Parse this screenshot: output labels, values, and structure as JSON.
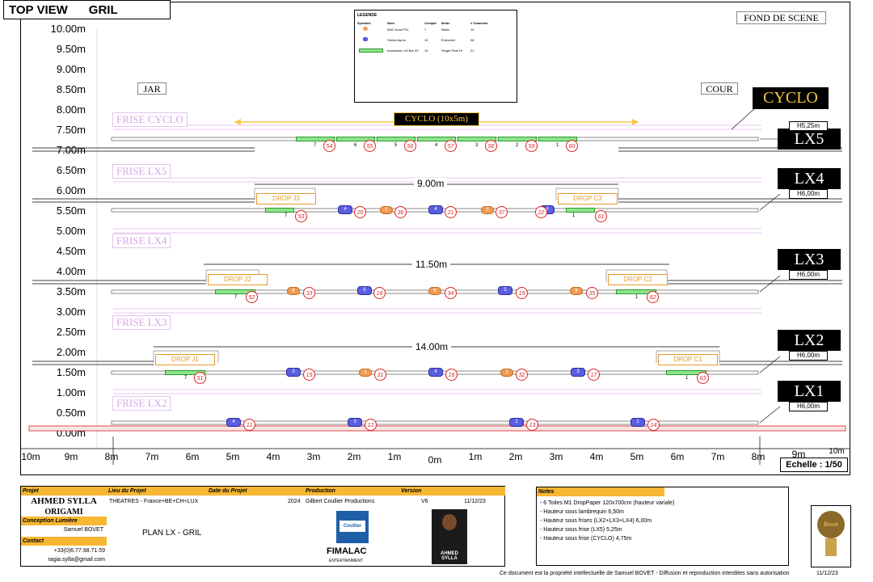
{
  "header": {
    "view": "TOP VIEW",
    "title": "GRIL"
  },
  "stage": {
    "backdrop": "FOND DE SCENE",
    "left": "JAR",
    "right": "COUR",
    "cyclo_label": "CYCLO",
    "cyclo_size": "CYCLO (10x5m)"
  },
  "y_axis": [
    "10.00m",
    "9.50m",
    "9.00m",
    "8.50m",
    "8.00m",
    "7.50m",
    "7.00m",
    "6.50m",
    "6.00m",
    "5.50m",
    "5.00m",
    "4.50m",
    "4.00m",
    "3.50m",
    "3.00m",
    "2.50m",
    "2.00m",
    "1.50m",
    "1.00m",
    "0.50m",
    "0.00m"
  ],
  "x_axis": [
    "10m",
    "9m",
    "8m",
    "7m",
    "6m",
    "5m",
    "4m",
    "3m",
    "2m",
    "1m",
    "0m",
    "1m",
    "2m",
    "3m",
    "4m",
    "5m",
    "6m",
    "7m",
    "8m",
    "9m",
    "10m"
  ],
  "scale": "Echelle : 1/50",
  "frises": [
    "FRISE CYCLO",
    "FRISE LX5",
    "FRISE LX4",
    "FRISE LX3",
    "FRISE LX2"
  ],
  "bars": [
    {
      "name": "LX5",
      "height": "H5,25m"
    },
    {
      "name": "LX4",
      "height": "H6,00m"
    },
    {
      "name": "LX3",
      "height": "H6,00m"
    },
    {
      "name": "LX2",
      "height": "H6,00m"
    },
    {
      "name": "LX1",
      "height": "H6,00m"
    }
  ],
  "widths": [
    "9.00m",
    "11.50m",
    "14.00m"
  ],
  "drops": [
    "DROP J3",
    "DROP C3",
    "DROP J2",
    "DROP C2",
    "DROP J1",
    "DROP C1"
  ],
  "legend": {
    "title": "LEGENDE",
    "headers": [
      "Symbole",
      "Nom",
      "Compte",
      "Mode",
      "# Channels"
    ],
    "rows": [
      [
        "MAC Aura PXL",
        "7",
        "Basic",
        "14"
      ],
      [
        "Strobe Ayron",
        "10",
        "Extended",
        "06"
      ],
      [
        "Impression X4 Bar 20",
        "10",
        "Single-Pixel HI",
        "21"
      ]
    ]
  },
  "lx5": {
    "counts": [
      "7",
      "6",
      "5",
      "4",
      "3",
      "2",
      "1"
    ],
    "ids": [
      "54",
      "55",
      "56",
      "57",
      "58",
      "59",
      "60"
    ]
  },
  "lx4": {
    "counts": [
      "7",
      "4",
      "5",
      "4",
      "5",
      "4",
      "1"
    ],
    "ids": [
      "53",
      "20",
      "36",
      "21",
      "37",
      "22",
      "61"
    ]
  },
  "lx3": {
    "counts": [
      "7",
      "6",
      "5",
      "6",
      "5",
      "6",
      "1"
    ],
    "ids": [
      "52",
      "33",
      "18",
      "34",
      "19",
      "35",
      "62"
    ]
  },
  "lx2": {
    "counts": [
      "7",
      "3",
      "3",
      "4",
      "3",
      "3",
      "1"
    ],
    "ids": [
      "51",
      "15",
      "31",
      "16",
      "32",
      "17",
      "63"
    ]
  },
  "lx1": {
    "counts": [
      "4",
      "3",
      "2",
      "1"
    ],
    "ids": [
      "11",
      "12",
      "13",
      "14"
    ]
  },
  "titleblock": {
    "h_projet": "Projet",
    "h_lieu": "Lieu du Projet",
    "h_date": "Date du Projet",
    "h_prod": "Production",
    "h_version": "Version",
    "artist": "AHMED SYLLA",
    "show": "ORIGAMI",
    "h_conception": "Conception Lumière",
    "designer": "Samuel BOVET",
    "h_contact": "Contact",
    "phone": "+33(0)6.77.98.71.59",
    "email": "ragia.sylla@gmail.com",
    "lieu": "THEATRES - France+BE+CH+LUX",
    "year": "2024",
    "production": "Gilbert Coullier Productions",
    "version": "V6",
    "date": "11/12/23",
    "plan": "PLAN LX -  GRIL",
    "logo_text": "Coullier Prod",
    "logo_sub": "FIMALAC",
    "logo_sub2": "ENTERTAINMENT",
    "poster": "AHMED SYLLA"
  },
  "notes": {
    "title": "Notes",
    "lines": [
      "- 6 Toiles M1 DropPaper 120x700cm (hauteur variale)",
      "- Hauteur sous lambrequin 6,50m",
      "- Hauteur sous frises (LX2+LX3+LX4) 6,00m",
      "- Hauteur sous frise (LX5) 5,25m",
      "- Hauteur sous frise (CYCLO) 4,75m"
    ]
  },
  "bulb_brand": "Bovet",
  "footer": {
    "copyright": "Ce document est la propriété intellectuelle de Samuel BOVET - Diffusion et reproduction interdites sans autorisation",
    "date": "11/12/23"
  },
  "colors": {
    "orange": "#f09a54",
    "blue": "#5b5ee0",
    "green": "#8fe38c",
    "red": "#d22222",
    "frise": "#d8a4e6",
    "highlight": "#f7b733"
  }
}
